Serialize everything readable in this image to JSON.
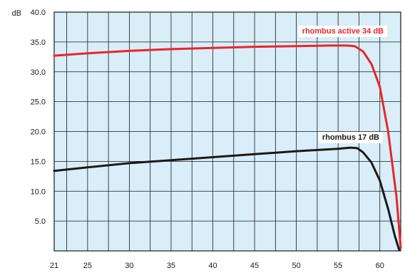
{
  "chart_data": {
    "type": "line",
    "y_unit_label": "dB",
    "xlim": [
      21,
      62.5
    ],
    "ylim": [
      0,
      40
    ],
    "x_ticks": [
      "21",
      "25",
      "30",
      "35",
      "40",
      "45",
      "50",
      "55",
      "60"
    ],
    "x_tick_values": [
      21,
      25,
      30,
      35,
      40,
      45,
      50,
      55,
      60
    ],
    "y_ticks": [
      "40.0",
      "35.0",
      "30.0",
      "25.0",
      "20.0",
      "15.0",
      "10.0",
      "5.0"
    ],
    "y_tick_values": [
      40,
      35,
      30,
      25,
      20,
      15,
      10,
      5
    ],
    "grid": true,
    "colors": {
      "plot_bg": "#d9eef8",
      "grid": "#1a1a1a",
      "frame": "#1a1a1a"
    },
    "series": [
      {
        "name": "rhombus active 34 dB",
        "color": "#e8262a",
        "label_bg": "#ffffff",
        "label_color": "#e8262a",
        "x": [
          21,
          25,
          30,
          35,
          40,
          45,
          50,
          54,
          56,
          57,
          58,
          59,
          60,
          61,
          62,
          62.5
        ],
        "values": [
          32.7,
          33.1,
          33.5,
          33.8,
          34.0,
          34.2,
          34.3,
          34.4,
          34.4,
          34.3,
          33.4,
          31.3,
          27.5,
          20.0,
          9.0,
          0.5
        ]
      },
      {
        "name": "rhombus 17 dB",
        "color": "#1a1a1a",
        "label_bg": "#ffffff",
        "label_color": "#1a1a1a",
        "x": [
          21,
          25,
          30,
          35,
          40,
          45,
          50,
          55,
          56.5,
          57.3,
          58,
          59,
          60,
          61,
          61.8,
          62.3
        ],
        "values": [
          13.4,
          14.0,
          14.7,
          15.2,
          15.7,
          16.2,
          16.7,
          17.1,
          17.3,
          17.2,
          16.5,
          14.8,
          11.8,
          7.0,
          2.5,
          0.2
        ]
      }
    ]
  }
}
